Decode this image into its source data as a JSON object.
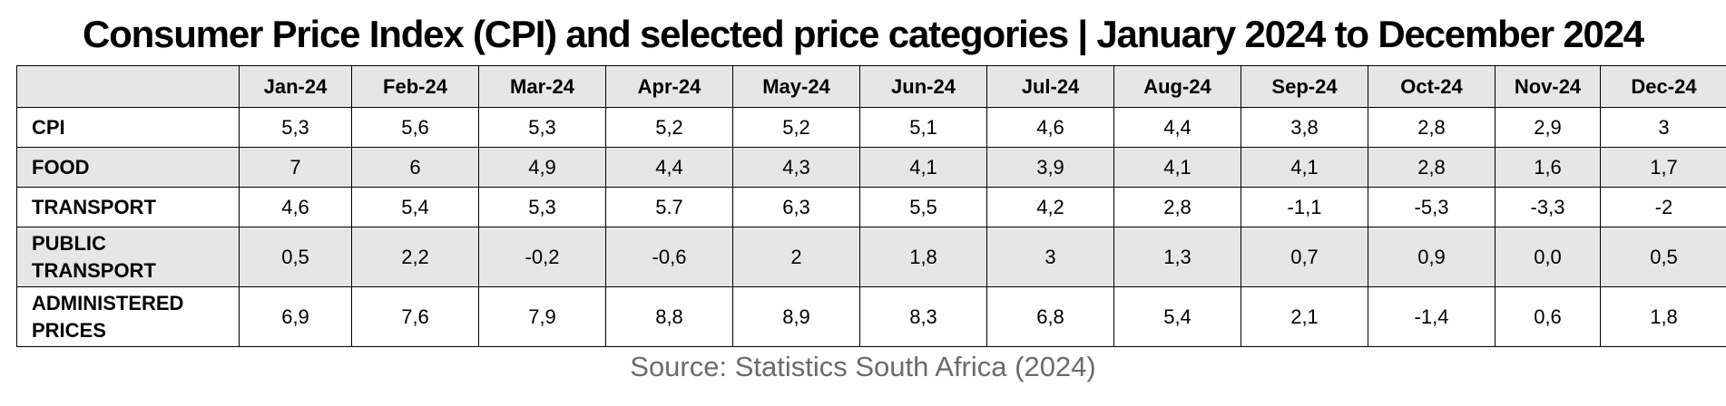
{
  "title": "Consumer Price Index (CPI) and selected price categories | January 2024 to December 2024",
  "source": "Source: Statistics South Africa (2024)",
  "chart_data": {
    "type": "table",
    "title": "Consumer Price Index (CPI) and selected price categories | January 2024 to December 2024",
    "columns": [
      "Jan-24",
      "Feb-24",
      "Mar-24",
      "Apr-24",
      "May-24",
      "Jun-24",
      "Jul-24",
      "Aug-24",
      "Sep-24",
      "Oct-24",
      "Nov-24",
      "Dec-24"
    ],
    "rows": [
      {
        "label_lines": [
          "CPI"
        ],
        "values": [
          "5,3",
          "5,6",
          "5,3",
          "5,2",
          "5,2",
          "5,1",
          "4,6",
          "4,4",
          "3,8",
          "2,8",
          "2,9",
          "3"
        ]
      },
      {
        "label_lines": [
          "FOOD"
        ],
        "values": [
          "7",
          "6",
          "4,9",
          "4,4",
          "4,3",
          "4,1",
          "3,9",
          "4,1",
          "4,1",
          "2,8",
          "1,6",
          "1,7"
        ]
      },
      {
        "label_lines": [
          "TRANSPORT"
        ],
        "values": [
          "4,6",
          "5,4",
          "5,3",
          "5.7",
          "6,3",
          "5,5",
          "4,2",
          "2,8",
          "-1,1",
          "-5,3",
          "-3,3",
          "-2"
        ]
      },
      {
        "label_lines": [
          "PUBLIC",
          "TRANSPORT"
        ],
        "values": [
          "0,5",
          "2,2",
          "-0,2",
          "-0,6",
          "2",
          "1,8",
          "3",
          "1,3",
          "0,7",
          "0,9",
          "0,0",
          "0,5"
        ]
      },
      {
        "label_lines": [
          "ADMINISTERED",
          "PRICES"
        ],
        "values": [
          "6,9",
          "7,6",
          "7,9",
          "8,8",
          "8,9",
          "8,3",
          "6,8",
          "5,4",
          "2,1",
          "-1,4",
          "0,6",
          "1,8"
        ]
      }
    ],
    "source": "Source: Statistics South Africa (2024)"
  }
}
